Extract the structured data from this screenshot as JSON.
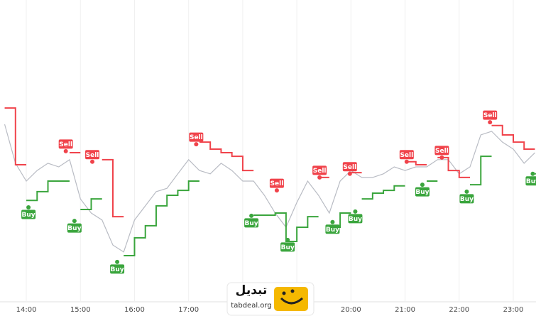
{
  "chart_data": {
    "type": "line",
    "x": [
      13.6,
      13.8,
      14.0,
      14.2,
      14.4,
      14.6,
      14.8,
      15.0,
      15.2,
      15.4,
      15.6,
      15.8,
      16.0,
      16.2,
      16.4,
      16.6,
      16.8,
      17.0,
      17.2,
      17.4,
      17.6,
      17.8,
      18.0,
      18.2,
      18.4,
      18.6,
      18.8,
      19.0,
      19.2,
      19.4,
      19.6,
      19.8,
      20.0,
      20.2,
      20.4,
      20.6,
      20.8,
      21.0,
      21.2,
      21.4,
      21.6,
      21.8,
      22.0,
      22.2,
      22.4,
      22.6,
      22.8,
      23.0,
      23.2,
      23.4
    ],
    "series": [
      {
        "color": "#b9bcc4",
        "values": [
          58.8,
          45.9,
          40.0,
          43.5,
          45.9,
          44.7,
          47.1,
          34.1,
          29.4,
          27.1,
          18.8,
          16.5,
          27.1,
          31.8,
          36.5,
          37.6,
          42.4,
          47.1,
          43.5,
          42.4,
          45.9,
          43.5,
          40.0,
          40.0,
          35.3,
          29.4,
          24.7,
          32.9,
          40.0,
          35.3,
          29.4,
          40.0,
          43.5,
          41.2,
          41.2,
          42.4,
          44.7,
          43.5,
          44.7,
          44.7,
          47.1,
          47.1,
          42.4,
          44.7,
          55.3,
          56.5,
          52.9,
          50.6,
          45.9,
          49.4
        ]
      },
      {
        "color": "#f0434b",
        "step": true,
        "values": [
          64.2,
          45.4,
          null,
          null,
          null,
          null,
          49.4,
          null,
          null,
          47.1,
          28.2,
          null,
          null,
          null,
          null,
          null,
          null,
          null,
          52.9,
          50.6,
          49.4,
          48.2,
          43.5,
          null,
          null,
          null,
          null,
          null,
          null,
          41.2,
          null,
          null,
          42.8,
          null,
          null,
          null,
          null,
          46.4,
          45.4,
          null,
          47.8,
          43.5,
          41.2,
          null,
          null,
          58.4,
          55.3,
          52.9,
          50.6,
          null
        ]
      },
      {
        "color": "#3aa53d",
        "step": true,
        "values": [
          null,
          null,
          33.6,
          36.5,
          40.0,
          40.0,
          null,
          30.6,
          34.1,
          null,
          null,
          15.3,
          21.2,
          25.2,
          31.8,
          35.3,
          36.9,
          40.0,
          null,
          null,
          null,
          null,
          null,
          28.7,
          28.7,
          29.4,
          20.0,
          24.7,
          28.2,
          null,
          24.7,
          29.4,
          null,
          34.1,
          36.0,
          36.9,
          38.4,
          null,
          null,
          40.0,
          null,
          null,
          null,
          38.8,
          48.2,
          null,
          null,
          null,
          null,
          42.4
        ]
      }
    ],
    "signals": [
      {
        "label": "Sell",
        "x": 14.73,
        "y": 49.9
      },
      {
        "label": "Sell",
        "x": 15.22,
        "y": 46.4
      },
      {
        "label": "Sell",
        "x": 17.14,
        "y": 52.2
      },
      {
        "label": "Sell",
        "x": 18.63,
        "y": 36.9
      },
      {
        "label": "Sell",
        "x": 19.42,
        "y": 41.2
      },
      {
        "label": "Sell",
        "x": 19.98,
        "y": 42.4
      },
      {
        "label": "Sell",
        "x": 21.03,
        "y": 46.4
      },
      {
        "label": "Sell",
        "x": 21.68,
        "y": 47.8
      },
      {
        "label": "Sell",
        "x": 22.57,
        "y": 59.5
      },
      {
        "label": "Buy",
        "x": 14.04,
        "y": 31.3
      },
      {
        "label": "Buy",
        "x": 14.89,
        "y": 26.8
      },
      {
        "label": "Buy",
        "x": 15.68,
        "y": 13.2
      },
      {
        "label": "Buy",
        "x": 18.16,
        "y": 28.5
      },
      {
        "label": "Buy",
        "x": 18.83,
        "y": 20.5
      },
      {
        "label": "Buy",
        "x": 19.66,
        "y": 26.4
      },
      {
        "label": "Buy",
        "x": 20.08,
        "y": 29.9
      },
      {
        "label": "Buy",
        "x": 21.32,
        "y": 38.8
      },
      {
        "label": "Buy",
        "x": 22.14,
        "y": 36.5
      },
      {
        "label": "Buy",
        "x": 23.36,
        "y": 42.4
      }
    ],
    "sell_color": "#f0434b",
    "buy_color": "#3aa53d",
    "xlim": [
      13.514,
      23.42
    ],
    "ylim": [
      0,
      100
    ],
    "xticks": [
      {
        "value": 14,
        "label": "14:00"
      },
      {
        "value": 15,
        "label": "15:00"
      },
      {
        "value": 16,
        "label": "16:00"
      },
      {
        "value": 17,
        "label": "17:00"
      },
      {
        "value": 18,
        "label": "18:00"
      },
      {
        "value": 19,
        "label": "19:00"
      },
      {
        "value": 20,
        "label": "20:00"
      },
      {
        "value": 21,
        "label": "21:00"
      },
      {
        "value": 22,
        "label": "22:00"
      },
      {
        "value": 23,
        "label": "23:00"
      }
    ],
    "grid": true
  },
  "watermark": {
    "name": "تبدیل",
    "url": "tabdeal.org"
  }
}
